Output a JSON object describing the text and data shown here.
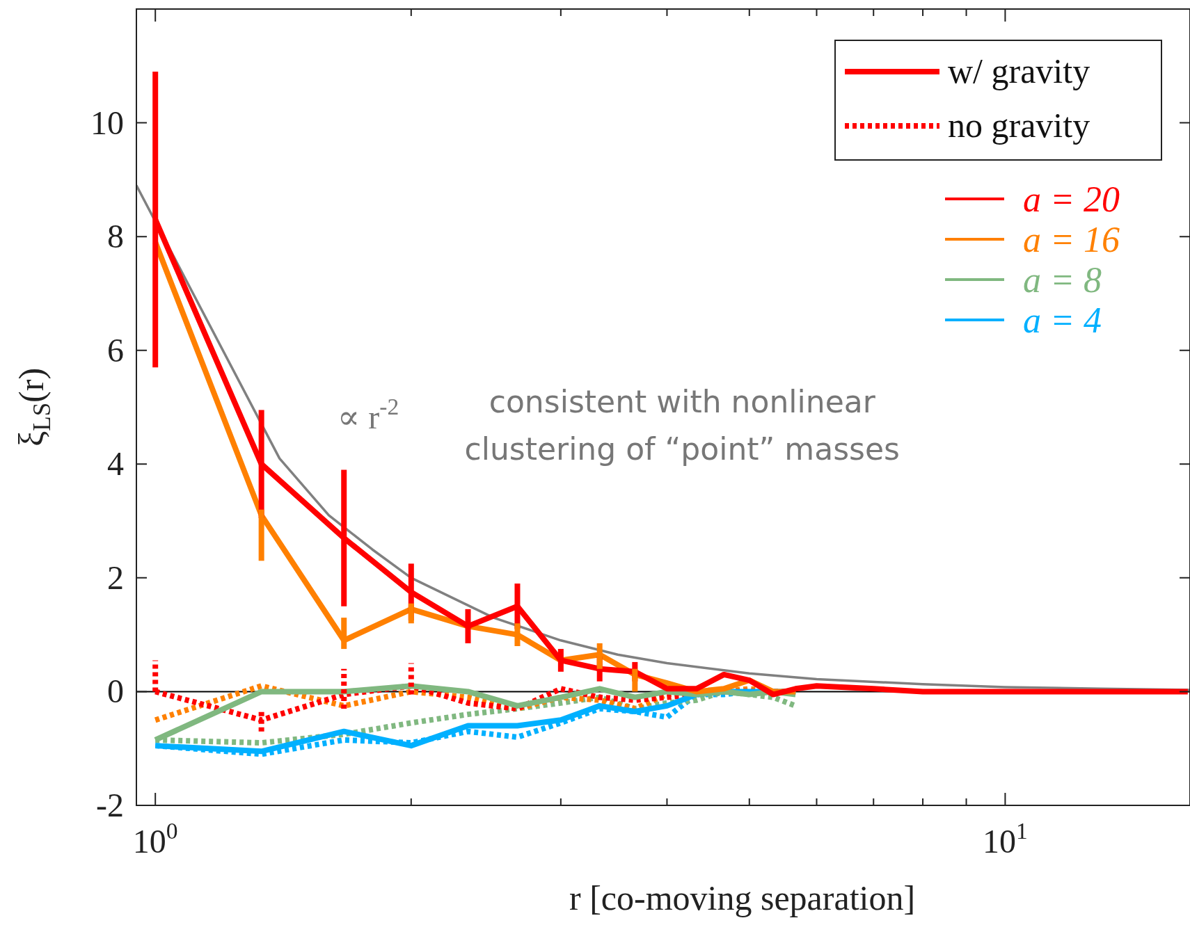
{
  "chart_data": {
    "type": "line",
    "xlabel": "r [co-moving separation]",
    "ylabel": "ξ$_{LS}$(r)",
    "log": "x",
    "marker": "none",
    "legend": "top right",
    "x": [
      1,
      1.333,
      1.667,
      2,
      2.333,
      2.667,
      3,
      3.333,
      3.667,
      4,
      4.333,
      4.667,
      5,
      5.333,
      5.667,
      6,
      7,
      8,
      10,
      12,
      14,
      16.4
    ],
    "xlim": [
      0.95,
      16.5
    ],
    "ylim": [
      -2,
      12
    ],
    "xticks": [
      {
        "value": 1,
        "label": "10$^{0}$"
      },
      {
        "value": 2,
        "label": null
      },
      {
        "value": 3,
        "label": null
      },
      {
        "value": 4,
        "label": null
      },
      {
        "value": 5,
        "label": null
      },
      {
        "value": 6,
        "label": null
      },
      {
        "value": 7,
        "label": null
      },
      {
        "value": 8,
        "label": null
      },
      {
        "value": 9,
        "label": null
      },
      {
        "value": 10,
        "label": "10$^{1}$"
      }
    ],
    "yticks": [
      -2,
      0,
      2,
      4,
      6,
      8,
      10
    ],
    "ref_lines": [
      {
        "axis": "y",
        "value": 0,
        "color": "#000000"
      }
    ],
    "series": [
      {
        "name": "a = 20",
        "color": "#ff0000",
        "values": [
          8.3,
          4.0,
          2.7,
          1.75,
          1.15,
          1.5,
          0.55,
          0.4,
          0.35,
          0.05,
          0.05,
          0.3,
          0.2,
          -0.05,
          0.05,
          0.1,
          0.05,
          0,
          0,
          0,
          0,
          0
        ],
        "errors": [
          2.6,
          0.95,
          1.2,
          0.5,
          0.3,
          0.4,
          0.2,
          0.22,
          0.17,
          null,
          null,
          null,
          null,
          null,
          null,
          null,
          null,
          null,
          null,
          null,
          null,
          null
        ]
      },
      {
        "name": "a = 16",
        "color": "#ff8000",
        "values": [
          7.9,
          3.1,
          0.9,
          1.45,
          1.15,
          1.0,
          0.55,
          0.65,
          0.3,
          0.15,
          0,
          0.05,
          0.2,
          0,
          0,
          null,
          null,
          null,
          null,
          null,
          null,
          null
        ],
        "errors": [
          null,
          [
            2.3,
            3.2
          ],
          [
            0.75,
            1.3
          ],
          [
            1.2,
            1.55
          ],
          null,
          [
            0.8,
            1.2
          ],
          null,
          [
            0.4,
            0.85
          ],
          [
            0.0,
            0.4
          ],
          null,
          null,
          null,
          null,
          null,
          null,
          null,
          null,
          null,
          null,
          null,
          null,
          null
        ]
      },
      {
        "name": "a = 8",
        "color": "#80b880",
        "values": [
          -0.85,
          0,
          0,
          0.1,
          0,
          -0.25,
          -0.1,
          0.05,
          -0.1,
          0,
          -0.05,
          0,
          -0.05,
          0,
          -0.05,
          null,
          null,
          null,
          null,
          null,
          null,
          null
        ]
      },
      {
        "name": "a = 4",
        "color": "#00b0ff",
        "values": [
          -0.95,
          -1.05,
          -0.7,
          -0.95,
          -0.6,
          -0.6,
          -0.5,
          -0.25,
          -0.35,
          -0.25,
          -0.05,
          0,
          0,
          0,
          0,
          null,
          null,
          null,
          null,
          null,
          null,
          null
        ]
      },
      {
        "color": "#ff0000",
        "line_style": "dotted",
        "values": [
          0,
          -0.5,
          -0.05,
          0.1,
          -0.2,
          -0.3,
          0.05,
          -0.1,
          -0.15,
          -0.1,
          -0.05,
          0,
          0,
          0,
          0,
          null,
          null,
          null,
          null,
          null,
          null,
          null
        ],
        "errors": [
          [
            0,
            0.55
          ],
          0.2,
          [
            -0.3,
            0.4
          ],
          [
            -0.05,
            0.5
          ],
          null,
          null,
          null,
          null,
          null,
          null,
          null,
          null,
          null,
          null,
          null,
          null,
          null,
          null,
          null,
          null,
          null,
          null
        ]
      },
      {
        "color": "#ff8000",
        "line_style": "dotted",
        "values": [
          -0.5,
          0.1,
          -0.25,
          0,
          -0.1,
          -0.3,
          -0.1,
          -0.15,
          -0.3,
          -0.05,
          0,
          0,
          0.05,
          0,
          0,
          null,
          null,
          null,
          null,
          null,
          null,
          null
        ]
      },
      {
        "color": "#80b880",
        "line_style": "dotted",
        "values": [
          -0.85,
          -0.9,
          -0.75,
          -0.55,
          -0.4,
          -0.3,
          -0.2,
          -0.1,
          -0.3,
          -0.2,
          -0.15,
          0,
          -0.05,
          -0.1,
          -0.25,
          null,
          null,
          null,
          null,
          null,
          null,
          null
        ]
      },
      {
        "color": "#00b0ff",
        "line_style": "dotted",
        "values": [
          -0.95,
          -1.1,
          -0.85,
          -0.9,
          -0.7,
          -0.8,
          -0.55,
          -0.3,
          -0.35,
          -0.45,
          -0.05,
          -0.05,
          0,
          null,
          null,
          null,
          null,
          null,
          null,
          null,
          null,
          null
        ]
      },
      {
        "type": "line",
        "color": "#808080",
        "x": [
          0.95,
          1.4,
          1.6,
          1.8,
          2,
          2.5,
          3,
          3.5,
          4,
          5,
          6,
          8,
          10,
          13,
          16.5
        ],
        "values": [
          8.9,
          4.1,
          3.1,
          2.5,
          2,
          1.3,
          0.9,
          0.65,
          0.5,
          0.32,
          0.22,
          0.13,
          0.08,
          0.05,
          0.03
        ]
      }
    ],
    "annotations": [
      "w/ gravity",
      "no gravity",
      "∝ r$^{-2}$",
      "consistent with nonlinear clustering of “point” masses"
    ]
  }
}
